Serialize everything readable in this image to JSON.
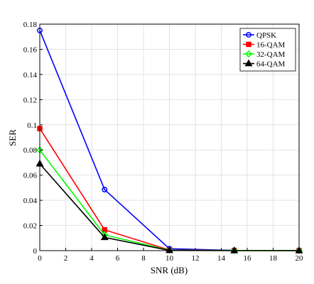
{
  "chart_data": {
    "type": "line",
    "xlabel": "SNR (dB)",
    "ylabel": "SER",
    "xlim": [
      0,
      20
    ],
    "ylim": [
      0,
      0.18
    ],
    "xticks": [
      0,
      2,
      4,
      6,
      8,
      10,
      12,
      14,
      16,
      18,
      20
    ],
    "xtick_labels": [
      "0",
      "2",
      "4",
      "6",
      "8",
      "10",
      "12",
      "14",
      "16",
      "18",
      "20"
    ],
    "yticks": [
      0,
      0.02,
      0.04,
      0.06,
      0.08,
      0.1,
      0.12,
      0.14,
      0.16,
      0.18
    ],
    "ytick_labels": [
      "0",
      "0.02",
      "0.04",
      "0.06",
      "0.08",
      "0.1",
      "0.12",
      "0.14",
      "0.16",
      "0.18"
    ],
    "grid": true,
    "legend_position": "top-right",
    "x": [
      0,
      5,
      10,
      15,
      20
    ],
    "series": [
      {
        "name": "QPSK",
        "color": "#0000ff",
        "marker": "circle",
        "values": [
          0.175,
          0.0485,
          0.0015,
          0.0002,
          0.0001
        ]
      },
      {
        "name": "16-QAM",
        "color": "#ff0000",
        "marker": "square",
        "values": [
          0.097,
          0.0165,
          0.0005,
          0.0001,
          0.0
        ]
      },
      {
        "name": "32-QAM",
        "color": "#00ff00",
        "marker": "diamond",
        "values": [
          0.08,
          0.0125,
          0.0003,
          0.0001,
          0.0
        ]
      },
      {
        "name": "64-QAM",
        "color": "#000000",
        "marker": "triangle",
        "values": [
          0.069,
          0.0105,
          0.0002,
          0.0,
          0.0
        ]
      }
    ]
  }
}
